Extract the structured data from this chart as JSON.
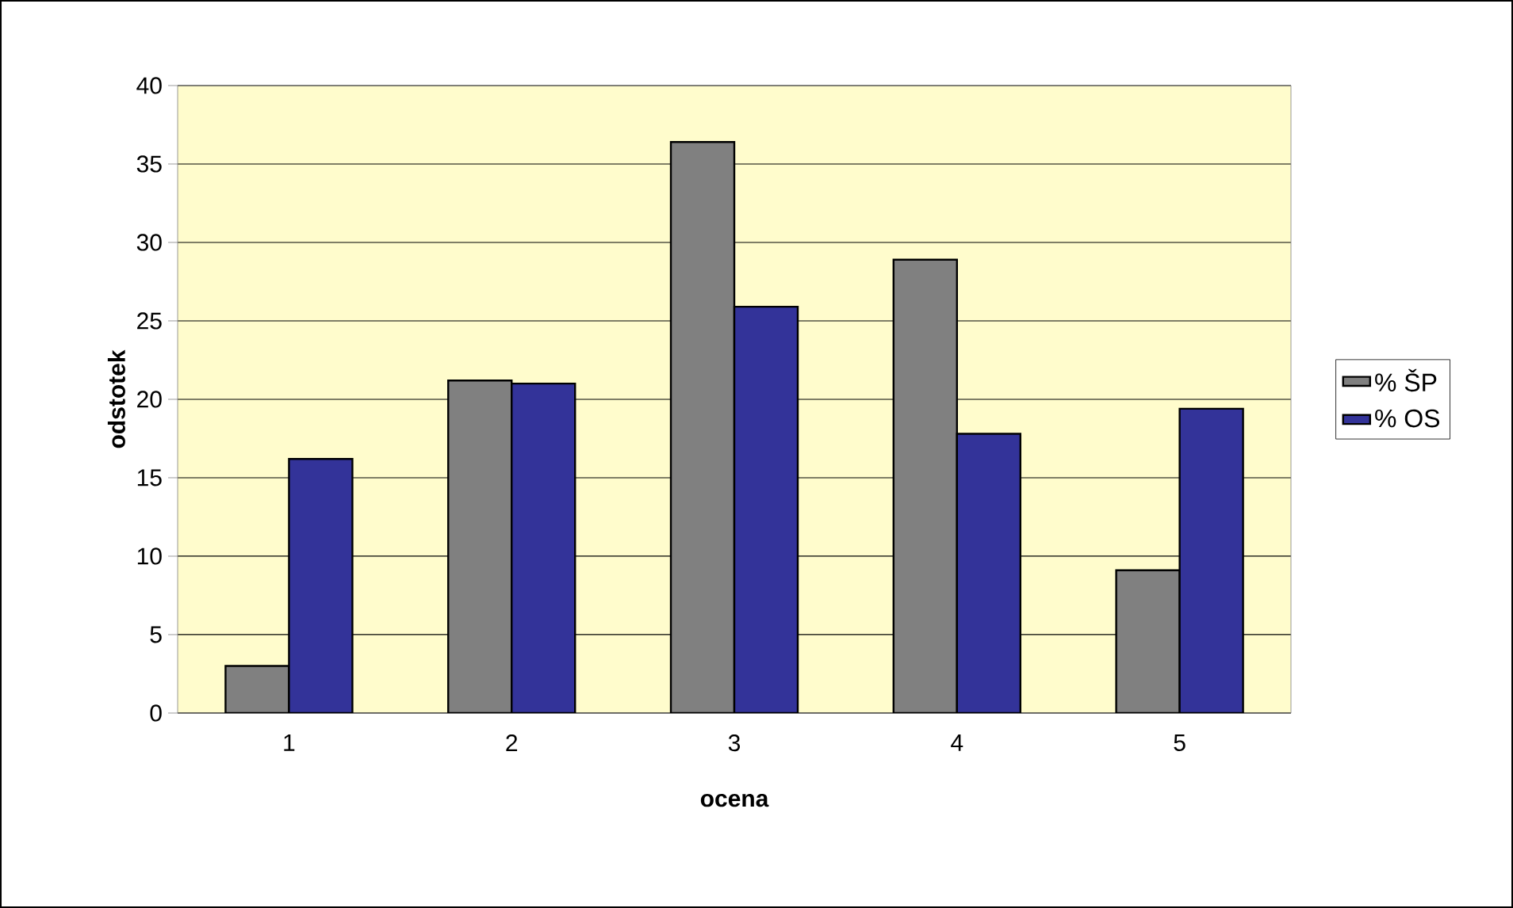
{
  "chart_data": {
    "type": "bar",
    "xlabel": "ocena",
    "ylabel": "odstotek",
    "categories": [
      "1",
      "2",
      "3",
      "4",
      "5"
    ],
    "series": [
      {
        "name": "% ŠP",
        "color": "#808080",
        "values": [
          3.0,
          21.2,
          36.4,
          28.9,
          9.1
        ]
      },
      {
        "name": "% OS",
        "color": "#333399",
        "values": [
          16.2,
          21.0,
          25.9,
          17.8,
          19.4
        ]
      }
    ],
    "ylim": [
      0,
      40
    ],
    "yticks": [
      0,
      5,
      10,
      15,
      20,
      25,
      30,
      35,
      40
    ],
    "grid": "y",
    "legend": "right"
  }
}
